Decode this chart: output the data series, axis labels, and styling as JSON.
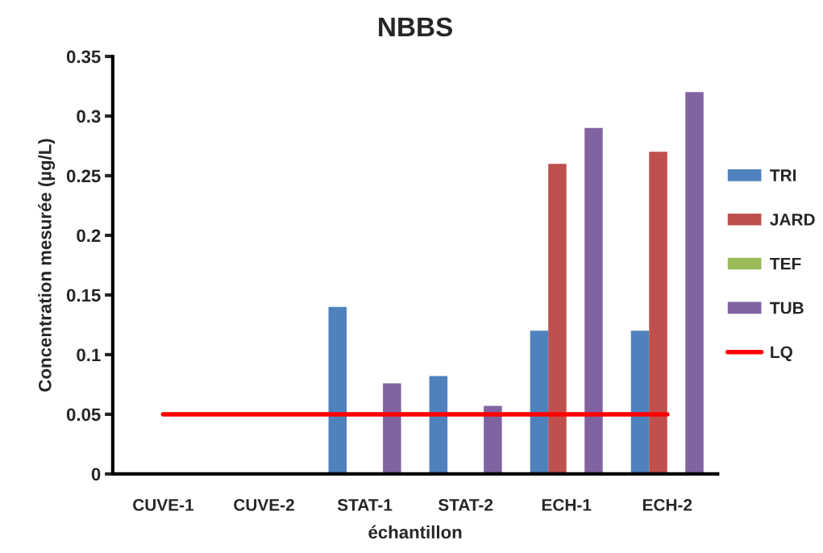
{
  "chart_data": {
    "type": "bar",
    "title": "NBBS",
    "xlabel": "échantillon",
    "ylabel": "Concentration mesurée (µg/L)",
    "categories": [
      "CUVE-1",
      "CUVE-2",
      "STAT-1",
      "STAT-2",
      "ECH-1",
      "ECH-2"
    ],
    "series": [
      {
        "name": "TRI",
        "color": "#4f81bd",
        "values": [
          null,
          null,
          0.14,
          0.082,
          0.12,
          0.12
        ]
      },
      {
        "name": "JARD",
        "color": "#c0504d",
        "values": [
          null,
          null,
          null,
          null,
          0.26,
          0.27
        ]
      },
      {
        "name": "TEF",
        "color": "#9bbb59",
        "values": [
          null,
          null,
          null,
          null,
          null,
          null
        ]
      },
      {
        "name": "TUB",
        "color": "#8064a2",
        "values": [
          null,
          null,
          0.076,
          0.057,
          0.29,
          0.32
        ]
      },
      {
        "name": "LQ",
        "type": "line",
        "color": "#ff0000",
        "values": [
          0.05,
          0.05,
          0.05,
          0.05,
          0.05,
          0.05
        ]
      }
    ],
    "ylim": [
      0,
      0.35
    ],
    "yticks": [
      0,
      0.05,
      0.1,
      0.15,
      0.2,
      0.25,
      0.3,
      0.35
    ],
    "grid": false,
    "legend": "right"
  }
}
